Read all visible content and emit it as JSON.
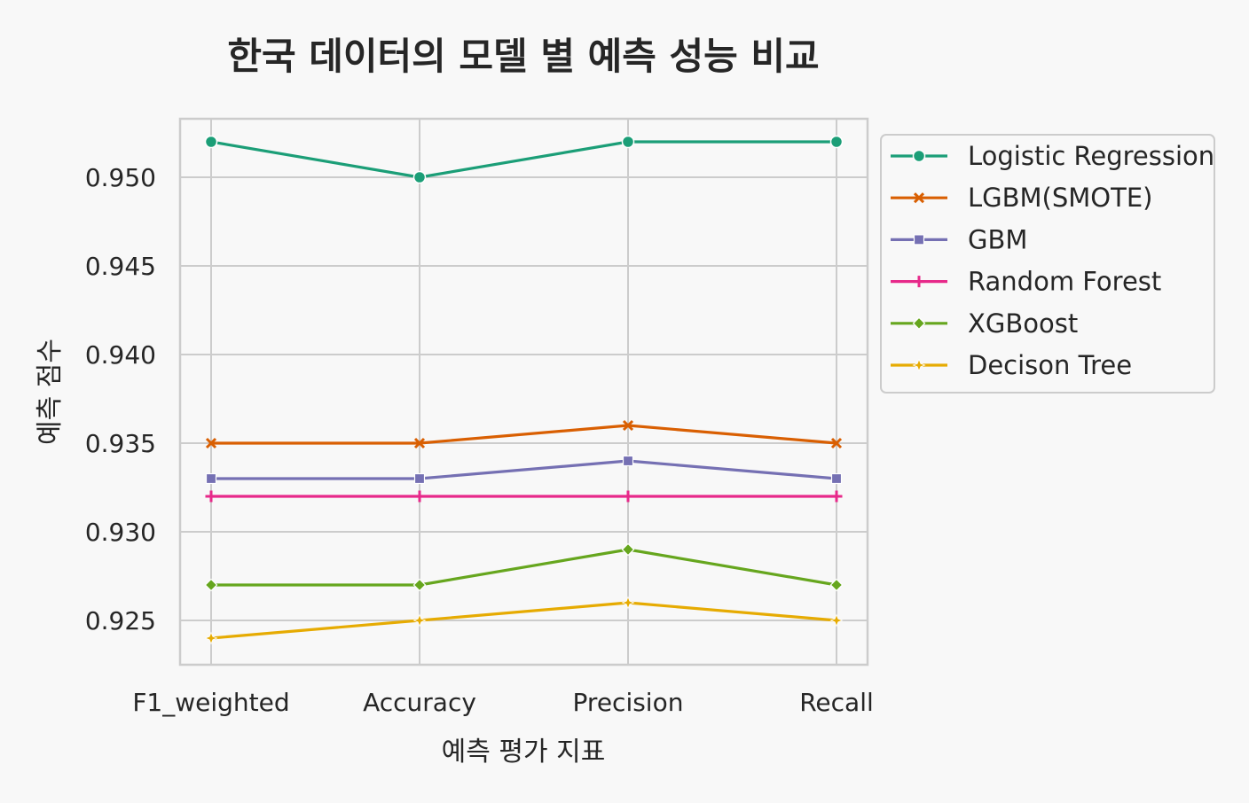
{
  "chart_data": {
    "type": "line",
    "title": "한국 데이터의 모델 별 예측 성능 비교",
    "xlabel": "예측 평가 지표",
    "ylabel": "예측 점수",
    "categories": [
      "F1_weighted",
      "Accuracy",
      "Precision",
      "Recall"
    ],
    "ylim": [
      0.9225,
      0.9533
    ],
    "yticks": [
      0.925,
      0.93,
      0.935,
      0.94,
      0.945,
      0.95
    ],
    "ytick_labels": [
      "0.925",
      "0.930",
      "0.935",
      "0.940",
      "0.945",
      "0.950"
    ],
    "grid": true,
    "legend_placement": "outside-right",
    "series": [
      {
        "name": "Logistic Regression",
        "marker": "circle",
        "color": "#1b9e77",
        "values": [
          0.952,
          0.95,
          0.952,
          0.952
        ]
      },
      {
        "name": "LGBM(SMOTE)",
        "marker": "x",
        "color": "#d95f02",
        "values": [
          0.935,
          0.935,
          0.936,
          0.935
        ]
      },
      {
        "name": "GBM",
        "marker": "square",
        "color": "#7570b3",
        "values": [
          0.933,
          0.933,
          0.934,
          0.933
        ]
      },
      {
        "name": "Random Forest",
        "marker": "plus",
        "color": "#e7298a",
        "values": [
          0.932,
          0.932,
          0.932,
          0.932
        ]
      },
      {
        "name": "XGBoost",
        "marker": "diamond",
        "color": "#66a61e",
        "values": [
          0.927,
          0.927,
          0.929,
          0.927
        ]
      },
      {
        "name": "Decison Tree",
        "marker": "star",
        "color": "#e6ab02",
        "values": [
          0.924,
          0.925,
          0.926,
          0.925
        ]
      }
    ]
  }
}
